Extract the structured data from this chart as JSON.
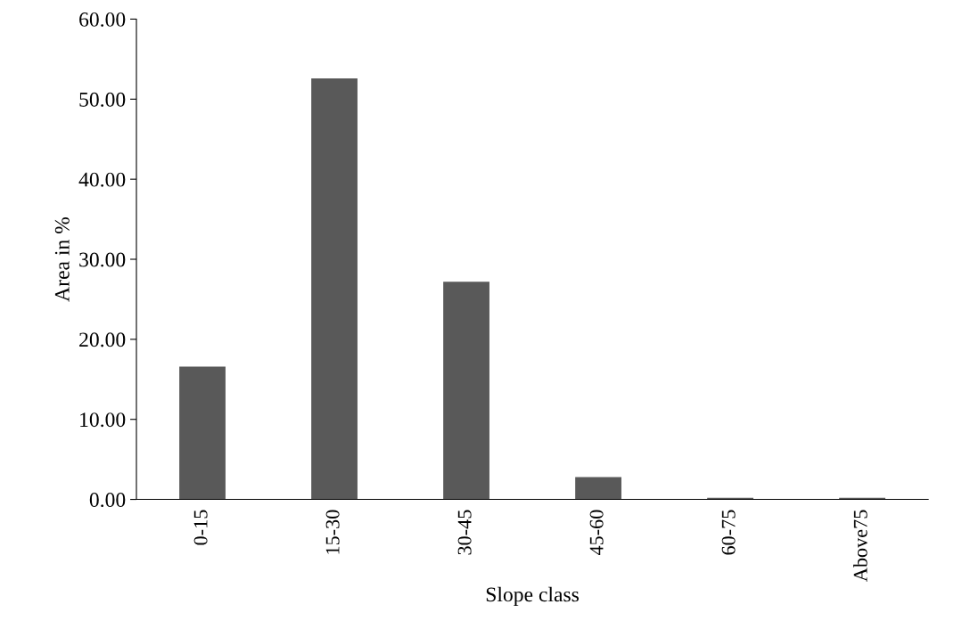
{
  "chart_data": {
    "type": "bar",
    "xlabel": "Slope class",
    "ylabel": "Area in %",
    "categories": [
      "0-15",
      "15-30",
      "30-45",
      "45-60",
      "60-75",
      "Above75"
    ],
    "values": [
      16.6,
      52.6,
      27.2,
      2.8,
      0.2,
      0.2
    ],
    "color": "#595959",
    "ylim": [
      0,
      60
    ],
    "yticks": [
      {
        "value": 0,
        "label": "0.00"
      },
      {
        "value": 10,
        "label": "10.00"
      },
      {
        "value": 20,
        "label": "20.00"
      },
      {
        "value": 30,
        "label": "30.00"
      },
      {
        "value": 40,
        "label": "40.00"
      },
      {
        "value": 50,
        "label": "50.00"
      },
      {
        "value": 60,
        "label": "60.00"
      }
    ],
    "grid": false
  }
}
